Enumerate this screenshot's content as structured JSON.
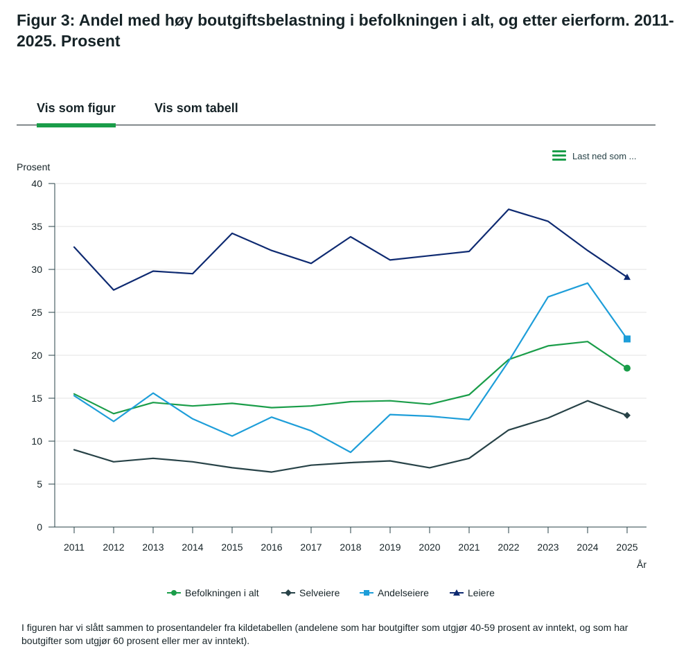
{
  "title": "Figur 3: Andel med høy boutgiftsbelastning i befolkningen i alt, og etter eierform. 2011-2025. Prosent",
  "tabs": [
    {
      "label": "Vis som figur",
      "active": true
    },
    {
      "label": "Vis som tabell",
      "active": false
    }
  ],
  "download": {
    "label": "Last ned som ...",
    "icon": "menu-icon"
  },
  "footnote": "I figuren har vi slått sammen to prosentandeler fra kildetabellen (andelene som har boutgifter som utgjør 40-59 prosent av inntekt, og som har boutgifter som utgjør 60 prosent eller mer av inntekt).",
  "chart_data": {
    "type": "line",
    "title": "Figur 3: Andel med høy boutgiftsbelastning i befolkningen i alt, og etter eierform. 2011-2025. Prosent",
    "ylabel": "Prosent",
    "xlabel": "År",
    "ylim": [
      0,
      40
    ],
    "yticks": [
      0,
      5,
      10,
      15,
      20,
      25,
      30,
      35,
      40
    ],
    "grid": true,
    "legend_position": "bottom",
    "categories": [
      "2011",
      "2012",
      "2013",
      "2014",
      "2015",
      "2016",
      "2017",
      "2018",
      "2019",
      "2020",
      "2021",
      "2022",
      "2023",
      "2024",
      "2025"
    ],
    "series": [
      {
        "name": "Befolkningen i alt",
        "color": "#1a9d49",
        "marker": "circle",
        "values": [
          15.5,
          13.2,
          14.5,
          14.1,
          14.4,
          13.9,
          14.1,
          14.6,
          14.7,
          14.3,
          15.4,
          19.5,
          21.1,
          21.6,
          18.5
        ]
      },
      {
        "name": "Selveiere",
        "color": "#274247",
        "marker": "diamond",
        "values": [
          9.0,
          7.6,
          8.0,
          7.6,
          6.9,
          6.4,
          7.2,
          7.5,
          7.7,
          6.9,
          8.0,
          11.3,
          12.7,
          14.7,
          13.0
        ]
      },
      {
        "name": "Andelseiere",
        "color": "#1e9ed9",
        "marker": "square",
        "values": [
          15.3,
          12.3,
          15.6,
          12.6,
          10.6,
          12.8,
          11.2,
          8.7,
          13.1,
          12.9,
          12.5,
          19.3,
          26.8,
          28.4,
          21.9
        ]
      },
      {
        "name": "Leiere",
        "color": "#0e2a71",
        "marker": "triangle",
        "values": [
          32.6,
          27.6,
          29.8,
          29.5,
          34.2,
          32.2,
          30.7,
          33.8,
          31.1,
          31.6,
          32.1,
          37.0,
          35.6,
          32.2,
          29.1
        ]
      }
    ]
  }
}
